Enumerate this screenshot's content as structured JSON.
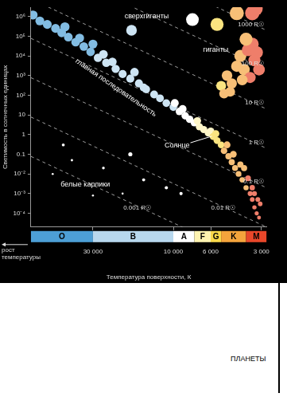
{
  "chart_data": {
    "type": "scatter",
    "xlabel": "Температура поверхности, К",
    "ylabel": "Светимость в солнечных единицах",
    "x_direction_label": "рост температуры",
    "log": true,
    "grid": false,
    "marker": "circle",
    "xlim": [
      70000,
      2800
    ],
    "xticks": [
      {
        "value": 30000,
        "label": "30 000"
      },
      {
        "value": 10000,
        "label": "10 000"
      },
      {
        "value": 6000,
        "label": "6 000"
      },
      {
        "value": 3000,
        "label": "3 000"
      }
    ],
    "ylim": [
      2e-05,
      3000000
    ],
    "yticks": [
      {
        "value": 1000000,
        "label": "10⁶"
      },
      {
        "value": 100000,
        "label": "10⁵"
      },
      {
        "value": 10000,
        "label": "10⁴"
      },
      {
        "value": 1000,
        "label": "10³"
      },
      {
        "value": 100,
        "label": "10²"
      },
      10,
      1,
      0.1,
      {
        "value": 0.01,
        "label": "10⁻²"
      },
      {
        "value": 0.001,
        "label": "10⁻³"
      },
      {
        "value": 0.0001,
        "label": "10⁻⁴"
      }
    ],
    "spectral_classes": [
      {
        "label": "O",
        "from": 70000,
        "to": 30000,
        "color": "#4d9fd6"
      },
      {
        "label": "B",
        "from": 30000,
        "to": 10000,
        "color": "#b8d8ee"
      },
      {
        "label": "A",
        "from": 10000,
        "to": 7500,
        "color": "#ffffff"
      },
      {
        "label": "F",
        "from": 7500,
        "to": 6000,
        "color": "#fdf2b0"
      },
      {
        "label": "G",
        "from": 6000,
        "to": 5200,
        "color": "#f8d84a"
      },
      {
        "label": "K",
        "from": 5200,
        "to": 3700,
        "color": "#f4a43c"
      },
      {
        "label": "M",
        "from": 3700,
        "to": 2800,
        "color": "#e8472a"
      }
    ],
    "series": [
      {
        "name": "главная последовательность",
        "label": {
          "x": 21900,
          "y": 240
        },
        "points": [
          [
            68000,
            1200000
          ],
          [
            62000,
            600000
          ],
          [
            56000,
            400000
          ],
          [
            50000,
            250000
          ],
          [
            46000,
            150000
          ],
          [
            44000,
            300000
          ],
          [
            42000,
            90000
          ],
          [
            38000,
            50000
          ],
          [
            36000,
            80000
          ],
          [
            34000,
            30000
          ],
          [
            31000,
            16000
          ],
          [
            30000,
            40000
          ],
          [
            28000,
            8000
          ],
          [
            26000,
            12000
          ],
          [
            25000,
            4500
          ],
          [
            23000,
            5000
          ],
          [
            22000,
            2200
          ],
          [
            20000,
            1200
          ],
          [
            18000,
            700
          ],
          [
            17000,
            1500
          ],
          [
            16000,
            400
          ],
          [
            15000,
            250
          ],
          [
            14500,
            200
          ],
          [
            13000,
            110
          ],
          [
            12000,
            70
          ],
          [
            11000,
            40
          ],
          [
            10000,
            25
          ],
          [
            9800,
            40
          ],
          [
            9200,
            15
          ],
          [
            8800,
            20
          ],
          [
            8500,
            9
          ],
          [
            8000,
            6
          ],
          [
            7500,
            4
          ],
          [
            7200,
            5
          ],
          [
            7000,
            2.5
          ],
          [
            6600,
            1.8
          ],
          [
            6200,
            1.2
          ],
          [
            6000,
            1.5
          ],
          [
            5800,
            0.8
          ],
          [
            5600,
            1.1
          ],
          [
            5500,
            0.5
          ],
          [
            5200,
            0.3
          ],
          [
            5000,
            0.15
          ],
          [
            4800,
            0.3
          ],
          [
            4700,
            0.08
          ],
          [
            4500,
            0.04
          ],
          [
            4400,
            0.1
          ],
          [
            4300,
            0.02
          ],
          [
            4100,
            0.01
          ],
          [
            4000,
            0.03
          ],
          [
            3900,
            0.005
          ],
          [
            3800,
            0.02
          ],
          [
            3700,
            0.002
          ],
          [
            3600,
            0.006
          ],
          [
            3500,
            0.001
          ],
          [
            3400,
            0.002
          ],
          [
            3400,
            0.0005
          ],
          [
            3300,
            0.001
          ],
          [
            3300,
            0.0002
          ],
          [
            3200,
            0.0001
          ],
          [
            3150,
            0.0005
          ],
          [
            3100,
            6e-05
          ],
          [
            3050,
            0.0003
          ]
        ]
      },
      {
        "name": "гиганты",
        "label": {
          "x": 5600,
          "y": 20000
        },
        "points": [
          [
            5200,
            300
          ],
          [
            4800,
            1000
          ],
          [
            4500,
            400
          ],
          [
            4200,
            3000
          ],
          [
            4000,
            10000
          ],
          [
            3800,
            2000
          ],
          [
            3600,
            20000
          ],
          [
            3500,
            800
          ],
          [
            3400,
            40000
          ],
          [
            3300,
            6000
          ],
          [
            3200,
            15000
          ],
          [
            3100,
            2000
          ],
          [
            4600,
            150
          ],
          [
            5000,
            120
          ],
          [
            3900,
            600
          ],
          [
            3700,
            70000
          ]
        ]
      },
      {
        "name": "сверхгиганты",
        "label": {
          "x": 14400,
          "y": 1000000
        },
        "points": [
          [
            17700,
            200000
          ],
          [
            7700,
            700000
          ],
          [
            4200,
            1500000
          ],
          [
            3400,
            1500000
          ],
          [
            5500,
            400000
          ],
          [
            3250,
            2500000
          ]
        ]
      },
      {
        "name": "белые карлики",
        "color": "#ffffff",
        "label": {
          "x": 33300,
          "y": 0.0029
        },
        "points": [
          [
            52000,
            0.01
          ],
          [
            40000,
            0.05
          ],
          [
            30000,
            0.0008
          ],
          [
            26000,
            0.02
          ],
          [
            20000,
            0.001
          ],
          [
            15000,
            0.005
          ],
          [
            11000,
            0.002
          ],
          [
            9000,
            0.001
          ],
          [
            18000,
            0.1
          ],
          [
            45000,
            0.3
          ]
        ]
      }
    ],
    "radius_lines": [
      {
        "label": "1000 R☉",
        "line_style": "dashed",
        "x": [
          70000,
          2800
        ],
        "y": [
          78125000000,
          200000
        ]
      },
      {
        "label": "100 R☉",
        "line_style": "dashed",
        "x": [
          70000,
          2800
        ],
        "y": [
          781250000,
          2000
        ]
      },
      {
        "label": "10 R☉",
        "line_style": "dashed",
        "x": [
          70000,
          2800
        ],
        "y": [
          7812500,
          20
        ]
      },
      {
        "label": "1 R☉",
        "line_style": "dashed",
        "x": [
          70000,
          2800
        ],
        "y": [
          78125,
          0.2
        ]
      },
      {
        "label": "0.1 R☉",
        "line_style": "dashed",
        "x": [
          70000,
          2800
        ],
        "y": [
          781.25,
          0.002
        ]
      },
      {
        "label": "0.01 R☉",
        "line_style": "dashed",
        "x": [
          70000,
          2800
        ],
        "y": [
          7.8125,
          2e-05
        ]
      },
      {
        "label": "0.001 R☉",
        "line_style": "dashed",
        "x": [
          70000,
          2800
        ],
        "y": [
          0.078125,
          2e-07
        ]
      }
    ],
    "annotations": [
      {
        "text": "Солнце",
        "x": 9500,
        "y": 0.29,
        "point": [
          5780,
          1
        ]
      }
    ]
  },
  "panel": {
    "label": "ПЛАНЕТЫ"
  }
}
